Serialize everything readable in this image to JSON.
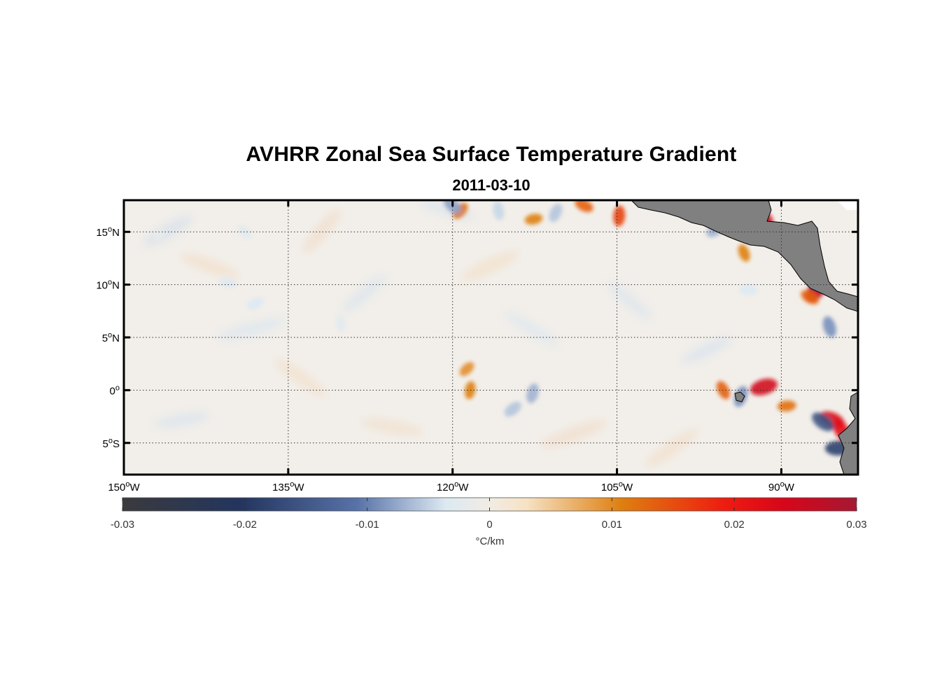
{
  "title": "AVHRR Zonal Sea Surface Temperature Gradient",
  "subtitle": "2011-03-10",
  "chart_data": {
    "type": "heatmap",
    "title": "AVHRR Zonal Sea Surface Temperature Gradient",
    "subtitle": "2011-03-10",
    "variable": "zonal SST gradient",
    "xlim": [
      -150,
      -83
    ],
    "ylim": [
      -8,
      18
    ],
    "lon_ticks": [
      {
        "value": -150,
        "deg": "150",
        "hemi": "W"
      },
      {
        "value": -135,
        "deg": "135",
        "hemi": "W"
      },
      {
        "value": -120,
        "deg": "120",
        "hemi": "W"
      },
      {
        "value": -105,
        "deg": "105",
        "hemi": "W"
      },
      {
        "value": -90,
        "deg": "90",
        "hemi": "W"
      }
    ],
    "lat_ticks": [
      {
        "value": 15,
        "deg": "15",
        "hemi": "N"
      },
      {
        "value": 10,
        "deg": "10",
        "hemi": "N"
      },
      {
        "value": 5,
        "deg": "5",
        "hemi": "N"
      },
      {
        "value": 0,
        "deg": "0",
        "hemi": ""
      },
      {
        "value": -5,
        "deg": "5",
        "hemi": "S"
      }
    ],
    "grid": true,
    "colorbar": {
      "range": [
        -0.03,
        0.03
      ],
      "tick_values": [
        -0.03,
        -0.02,
        -0.01,
        0,
        0.01,
        0.02,
        0.03
      ],
      "tick_labels": [
        "-0.03",
        "-0.02",
        "-0.01",
        "0",
        "0.01",
        "0.02",
        "0.03"
      ],
      "unit_label": "°C/km",
      "colors": [
        "#3a3a3c",
        "#23355e",
        "#5872a8",
        "#dce9f2",
        "#f1ece4",
        "#f6e2c4",
        "#de7f10",
        "#ee1c10",
        "#d7061a",
        "#a51833"
      ]
    },
    "land_color": "#7f7f7f",
    "features": [
      {
        "lon": -91.4,
        "lat": 15.5,
        "value": 0.024
      },
      {
        "lon": -86.8,
        "lat": 9.5,
        "value": 0.026
      },
      {
        "lon": -91.6,
        "lat": 0.3,
        "value": 0.024
      },
      {
        "lon": -85.4,
        "lat": -2.8,
        "value": 0.022
      },
      {
        "lon": -84.5,
        "lat": -3.8,
        "value": 0.02
      },
      {
        "lon": -104.8,
        "lat": 16.5,
        "value": 0.014
      },
      {
        "lon": -119.3,
        "lat": 17.0,
        "value": 0.011
      },
      {
        "lon": -112.6,
        "lat": 16.2,
        "value": 0.01
      },
      {
        "lon": -108.0,
        "lat": 17.5,
        "value": 0.012
      },
      {
        "lon": -95.3,
        "lat": 0.0,
        "value": 0.012
      },
      {
        "lon": -118.4,
        "lat": 0.0,
        "value": 0.01
      },
      {
        "lon": -118.7,
        "lat": 2.0,
        "value": 0.009
      },
      {
        "lon": -89.5,
        "lat": -1.5,
        "value": 0.011
      },
      {
        "lon": -87.4,
        "lat": 8.8,
        "value": 0.012
      },
      {
        "lon": -93.4,
        "lat": 13.0,
        "value": 0.01
      },
      {
        "lon": -112.7,
        "lat": -0.3,
        "value": -0.013
      },
      {
        "lon": -114.5,
        "lat": -1.8,
        "value": -0.012
      },
      {
        "lon": -84.8,
        "lat": -5.5,
        "value": -0.022
      },
      {
        "lon": -86.2,
        "lat": -3.0,
        "value": -0.02
      },
      {
        "lon": -85.6,
        "lat": 6.0,
        "value": -0.015
      },
      {
        "lon": -93.7,
        "lat": -0.6,
        "value": -0.015
      },
      {
        "lon": -96.0,
        "lat": 15.2,
        "value": -0.013
      },
      {
        "lon": -93.0,
        "lat": 9.5,
        "value": -0.01
      },
      {
        "lon": -120.0,
        "lat": 17.5,
        "value": -0.014
      },
      {
        "lon": -115.8,
        "lat": 17.0,
        "value": -0.011
      },
      {
        "lon": -110.6,
        "lat": 16.8,
        "value": -0.012
      },
      {
        "lon": -138.0,
        "lat": 8.2,
        "value": -0.01
      },
      {
        "lon": -140.5,
        "lat": 10.2,
        "value": -0.009
      },
      {
        "lon": -139.0,
        "lat": 15.0,
        "value": -0.008
      },
      {
        "lon": -130.2,
        "lat": 6.3,
        "value": -0.008
      },
      {
        "lon": -146.8,
        "lat": 14.8,
        "value": -0.006
      }
    ]
  }
}
